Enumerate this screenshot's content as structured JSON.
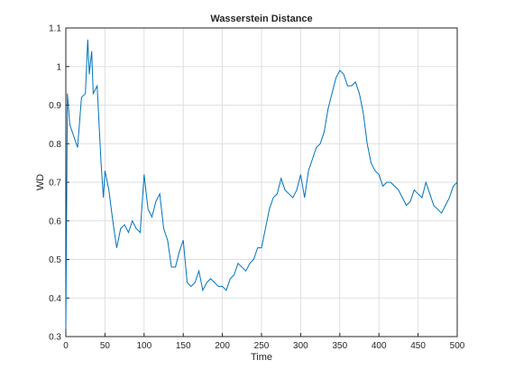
{
  "chart_data": {
    "type": "line",
    "title": "Wasserstein Distance",
    "x_label": "Time",
    "y_label": "WD",
    "x": [
      0,
      2,
      5,
      10,
      15,
      20,
      25,
      28,
      30,
      33,
      35,
      40,
      45,
      48,
      50,
      55,
      60,
      65,
      70,
      75,
      80,
      85,
      90,
      95,
      100,
      105,
      110,
      115,
      120,
      125,
      130,
      135,
      140,
      145,
      150,
      155,
      160,
      165,
      170,
      175,
      180,
      185,
      190,
      195,
      200,
      205,
      210,
      215,
      220,
      225,
      230,
      235,
      240,
      245,
      250,
      255,
      260,
      265,
      270,
      275,
      280,
      285,
      290,
      295,
      300,
      305,
      310,
      315,
      320,
      325,
      330,
      335,
      340,
      345,
      350,
      355,
      360,
      365,
      370,
      375,
      380,
      385,
      390,
      395,
      400,
      405,
      410,
      415,
      420,
      425,
      430,
      435,
      440,
      445,
      450,
      455,
      460,
      465,
      470,
      475,
      480,
      485,
      490,
      495,
      500
    ],
    "values": [
      0.32,
      0.93,
      0.85,
      0.82,
      0.79,
      0.92,
      0.93,
      1.07,
      0.98,
      1.04,
      0.93,
      0.95,
      0.75,
      0.66,
      0.73,
      0.68,
      0.6,
      0.53,
      0.58,
      0.59,
      0.57,
      0.6,
      0.58,
      0.57,
      0.72,
      0.63,
      0.61,
      0.65,
      0.67,
      0.58,
      0.55,
      0.48,
      0.48,
      0.52,
      0.55,
      0.44,
      0.43,
      0.44,
      0.47,
      0.42,
      0.44,
      0.45,
      0.44,
      0.43,
      0.43,
      0.42,
      0.45,
      0.46,
      0.49,
      0.48,
      0.47,
      0.49,
      0.5,
      0.53,
      0.53,
      0.58,
      0.63,
      0.66,
      0.67,
      0.71,
      0.68,
      0.67,
      0.66,
      0.68,
      0.72,
      0.66,
      0.73,
      0.76,
      0.79,
      0.8,
      0.83,
      0.89,
      0.93,
      0.97,
      0.99,
      0.98,
      0.95,
      0.95,
      0.96,
      0.93,
      0.88,
      0.8,
      0.75,
      0.73,
      0.72,
      0.69,
      0.7,
      0.7,
      0.69,
      0.68,
      0.66,
      0.64,
      0.65,
      0.68,
      0.67,
      0.66,
      0.7,
      0.67,
      0.64,
      0.63,
      0.62,
      0.64,
      0.66,
      0.69,
      0.7
    ],
    "color": "#0072bd",
    "xlim": [
      0,
      500
    ],
    "xticks": [
      0,
      50,
      100,
      150,
      200,
      250,
      300,
      350,
      400,
      450,
      500
    ],
    "ylim": [
      0.3,
      1.1
    ],
    "yticks": [
      0.3,
      0.4,
      0.5,
      0.6,
      0.7,
      0.8,
      0.9,
      1,
      1.1
    ],
    "grid": true
  }
}
